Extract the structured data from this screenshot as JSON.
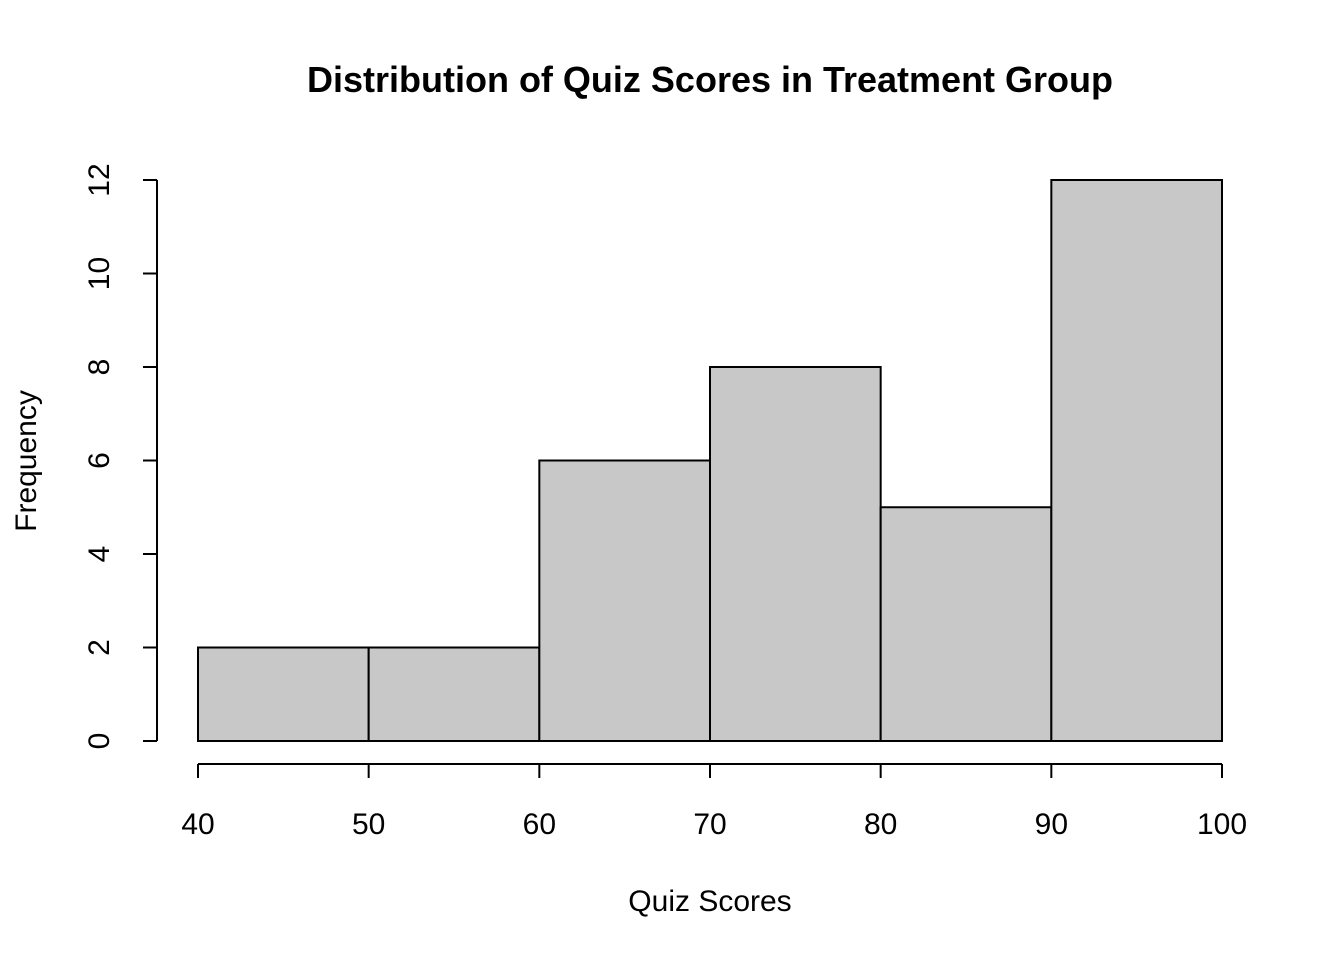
{
  "chart_data": {
    "type": "bar",
    "title": "Distribution of Quiz Scores in Treatment Group",
    "xlabel": "Quiz Scores",
    "ylabel": "Frequency",
    "bins": [
      {
        "from": 40,
        "to": 50,
        "count": 2
      },
      {
        "from": 50,
        "to": 60,
        "count": 2
      },
      {
        "from": 60,
        "to": 70,
        "count": 6
      },
      {
        "from": 70,
        "to": 80,
        "count": 8
      },
      {
        "from": 80,
        "to": 90,
        "count": 5
      },
      {
        "from": 90,
        "to": 100,
        "count": 12
      }
    ],
    "xlim": [
      40,
      100
    ],
    "ylim": [
      0,
      12
    ],
    "x_ticks": [
      "40",
      "50",
      "60",
      "70",
      "80",
      "90",
      "100"
    ],
    "y_ticks": [
      "0",
      "2",
      "4",
      "6",
      "8",
      "10",
      "12"
    ],
    "bar_color": "#c8c8c8",
    "edge_color": "#000000",
    "grid": false,
    "legend": "none"
  }
}
